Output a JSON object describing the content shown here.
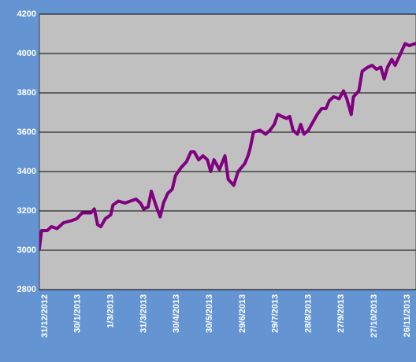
{
  "chart_data": {
    "type": "line",
    "x": [
      "31/12/2012",
      "2/1/2013",
      "7/1/2013",
      "11/1/2013",
      "16/1/2013",
      "22/1/2013",
      "29/1/2013",
      "3/2/2013",
      "8/2/2013",
      "16/2/2013",
      "19/2/2013",
      "22/2/2013",
      "25/2/2013",
      "1/3/2013",
      "6/3/2013",
      "8/3/2013",
      "13/3/2013",
      "19/3/2013",
      "24/3/2013",
      "29/3/2013",
      "2/4/2013",
      "5/4/2013",
      "9/4/2013",
      "12/4/2013",
      "16/4/2013",
      "20/4/2013",
      "23/4/2013",
      "27/4/2013",
      "1/5/2013",
      "4/5/2013",
      "9/5/2013",
      "14/5/2013",
      "18/5/2013",
      "21/5/2013",
      "25/5/2013",
      "29/5/2013",
      "2/6/2013",
      "5/6/2013",
      "8/6/2013",
      "13/6/2013",
      "18/6/2013",
      "21/6/2013",
      "26/6/2013",
      "30/6/2013",
      "6/7/2013",
      "9/7/2013",
      "11/7/2013",
      "14/7/2013",
      "20/7/2013",
      "25/7/2013",
      "29/7/2013",
      "2/8/2013",
      "5/8/2013",
      "9/8/2013",
      "13/8/2013",
      "16/8/2013",
      "19/8/2013",
      "23/8/2013",
      "26/8/2013",
      "29/8/2013",
      "2/9/2013",
      "6/9/2013",
      "10/9/2013",
      "14/9/2013",
      "18/9/2013",
      "21/9/2013",
      "25/9/2013",
      "30/9/2013",
      "4/10/2013",
      "7/10/2013",
      "11/10/2013",
      "13/10/2013",
      "18/10/2013",
      "21/10/2013",
      "26/10/2013",
      "30/10/2013",
      "3/11/2013",
      "7/11/2013",
      "10/11/2013",
      "13/11/2013",
      "17/11/2013",
      "20/11/2013",
      "25/11/2013",
      "29/11/2013",
      "3/12/2013",
      "8/12/2013"
    ],
    "series": [
      {
        "color": "#800080",
        "values": [
          3010,
          3100,
          3100,
          3120,
          3110,
          3140,
          3150,
          3160,
          3190,
          3190,
          3210,
          3130,
          3120,
          3160,
          3180,
          3230,
          3250,
          3240,
          3250,
          3260,
          3240,
          3210,
          3220,
          3300,
          3230,
          3170,
          3240,
          3290,
          3310,
          3380,
          3420,
          3450,
          3500,
          3500,
          3460,
          3480,
          3460,
          3400,
          3460,
          3410,
          3480,
          3360,
          3330,
          3400,
          3440,
          3480,
          3520,
          3600,
          3610,
          3590,
          3610,
          3640,
          3690,
          3680,
          3670,
          3680,
          3610,
          3590,
          3640,
          3590,
          3610,
          3650,
          3690,
          3720,
          3720,
          3760,
          3780,
          3770,
          3810,
          3770,
          3690,
          3780,
          3810,
          3910,
          3930,
          3940,
          3920,
          3930,
          3870,
          3930,
          3970,
          3940,
          4000,
          4050,
          4040,
          4050
        ]
      }
    ],
    "xlim": [
      "31/12/2012",
      "9/12/2013"
    ],
    "xticks": [
      "31/12/2012",
      "30/1/2013",
      "1/3/2013",
      "31/3/2013",
      "30/4/2013",
      "30/5/2013",
      "29/6/2013",
      "29/7/2013",
      "28/8/2013",
      "27/9/2013",
      "27/10/2013",
      "26/11/2013"
    ],
    "ylim": [
      2800,
      4200
    ],
    "yticks": [
      2800,
      3000,
      3200,
      3400,
      3600,
      3800,
      4000,
      4200
    ],
    "grid": true
  }
}
